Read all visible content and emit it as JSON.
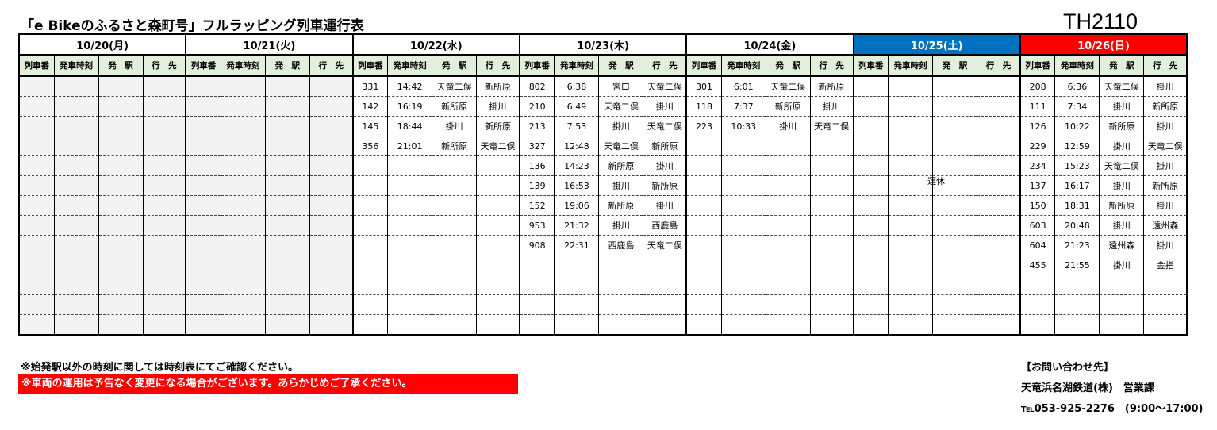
{
  "title": "「e Bikeのふるさと森町号」フルラッピング列車運行表",
  "code": "TH2110",
  "columns": [
    "列車番",
    "発車時刻",
    "発　駅",
    "行　先"
  ],
  "colors": {
    "saturday": "#0070c0",
    "sunday": "#ff0000",
    "header_bg": "#e2efda"
  },
  "days": [
    {
      "date": "10/20(月)",
      "rows": []
    },
    {
      "date": "10/21(火)",
      "rows": []
    },
    {
      "date": "10/22(水)",
      "rows": [
        [
          "331",
          "14:42",
          "天竜二俣",
          "新所原"
        ],
        [
          "142",
          "16:19",
          "新所原",
          "掛川"
        ],
        [
          "145",
          "18:44",
          "掛川",
          "新所原"
        ],
        [
          "356",
          "21:01",
          "新所原",
          "天竜二俣"
        ]
      ]
    },
    {
      "date": "10/23(木)",
      "rows": [
        [
          "802",
          "6:38",
          "宮口",
          "天竜二俣"
        ],
        [
          "210",
          "6:49",
          "天竜二俣",
          "掛川"
        ],
        [
          "213",
          "7:53",
          "掛川",
          "天竜二俣"
        ],
        [
          "327",
          "12:48",
          "天竜二俣",
          "新所原"
        ],
        [
          "136",
          "14:23",
          "新所原",
          "掛川"
        ],
        [
          "139",
          "16:53",
          "掛川",
          "新所原"
        ],
        [
          "152",
          "19:06",
          "新所原",
          "掛川"
        ],
        [
          "953",
          "21:32",
          "掛川",
          "西鹿島"
        ],
        [
          "908",
          "22:31",
          "西鹿島",
          "天竜二俣"
        ]
      ]
    },
    {
      "date": "10/24(金)",
      "rows": [
        [
          "301",
          "6:01",
          "天竜二俣",
          "新所原"
        ],
        [
          "118",
          "7:37",
          "新所原",
          "掛川"
        ],
        [
          "223",
          "10:33",
          "掛川",
          "天竜二俣"
        ]
      ]
    },
    {
      "date": "10/25(土)",
      "rows": [],
      "note": "運休"
    },
    {
      "date": "10/26(日)",
      "rows": [
        [
          "208",
          "6:36",
          "天竜二俣",
          "掛川"
        ],
        [
          "111",
          "7:34",
          "掛川",
          "新所原"
        ],
        [
          "126",
          "10:22",
          "新所原",
          "掛川"
        ],
        [
          "229",
          "12:59",
          "掛川",
          "天竜二俣"
        ],
        [
          "234",
          "15:23",
          "天竜二俣",
          "掛川"
        ],
        [
          "137",
          "16:17",
          "掛川",
          "新所原"
        ],
        [
          "150",
          "18:31",
          "新所原",
          "掛川"
        ],
        [
          "603",
          "20:48",
          "掛川",
          "遠州森"
        ],
        [
          "604",
          "21:23",
          "遠州森",
          "掛川"
        ],
        [
          "455",
          "21:55",
          "掛川",
          "金指"
        ]
      ]
    }
  ],
  "notes": {
    "note1": "※始発駅以外の時刻に関しては時刻表にてご確認ください。",
    "note2": "※車両の運用は予告なく変更になる場合がございます。あらかじめご了承ください。"
  },
  "contact": {
    "heading": "【お問い合わせ先】",
    "company": "天竜浜名湖鉄道(株)　営業課",
    "tel": "℡053-925-2276　(9:00～17:00)"
  }
}
